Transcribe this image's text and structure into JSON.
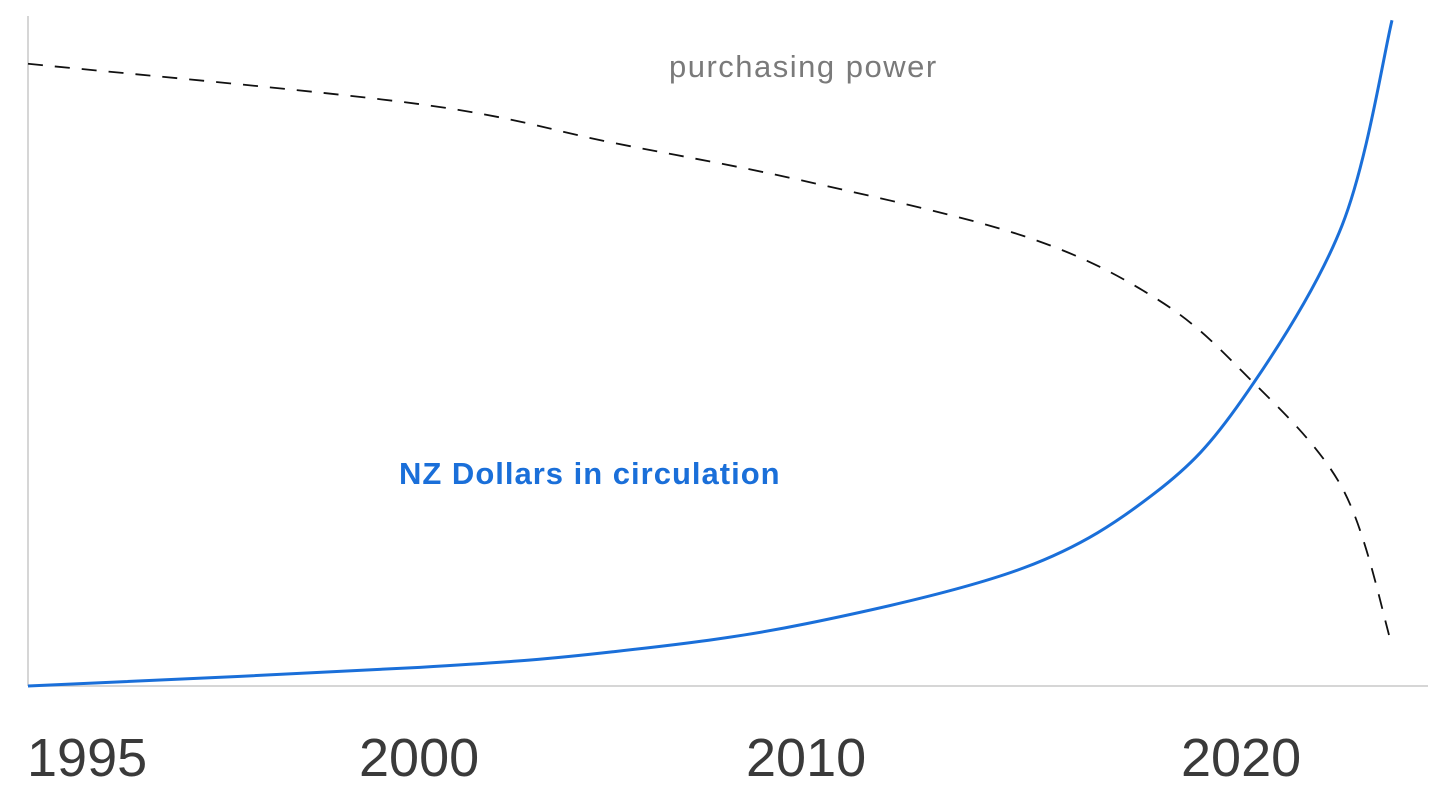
{
  "chart_data": {
    "type": "line",
    "title": "",
    "xlabel": "",
    "ylabel": "",
    "x_tick_labels": [
      "1995",
      "2000",
      "2010",
      "2020"
    ],
    "grid": false,
    "series": [
      {
        "name": "purchasing power",
        "style": "dashed",
        "color": "#111111",
        "points": [
          {
            "x": "1995",
            "y": 100
          },
          {
            "x": "2000",
            "y": 93.5
          },
          {
            "x": "2005",
            "y": 87.3
          },
          {
            "x": "2010",
            "y": 81.1
          },
          {
            "x": "2015",
            "y": 72.3
          },
          {
            "x": "2018",
            "y": 62.4
          },
          {
            "x": "2020",
            "y": 50.6
          },
          {
            "x": "2022",
            "y": 31.9
          },
          {
            "x": "2023",
            "y": 6.5
          }
        ]
      },
      {
        "name": "NZ Dollars in circulation",
        "style": "solid",
        "color": "#1a6fd9",
        "points": [
          {
            "x": "1995",
            "y": 0
          },
          {
            "x": "2000",
            "y": 3.0
          },
          {
            "x": "2005",
            "y": 5.5
          },
          {
            "x": "2010",
            "y": 10.0
          },
          {
            "x": "2015",
            "y": 19.0
          },
          {
            "x": "2018",
            "y": 31.0
          },
          {
            "x": "2020",
            "y": 46.0
          },
          {
            "x": "2022",
            "y": 74.0
          },
          {
            "x": "2023",
            "y": 107.0
          }
        ]
      }
    ],
    "ylim": [
      0,
      108
    ]
  }
}
